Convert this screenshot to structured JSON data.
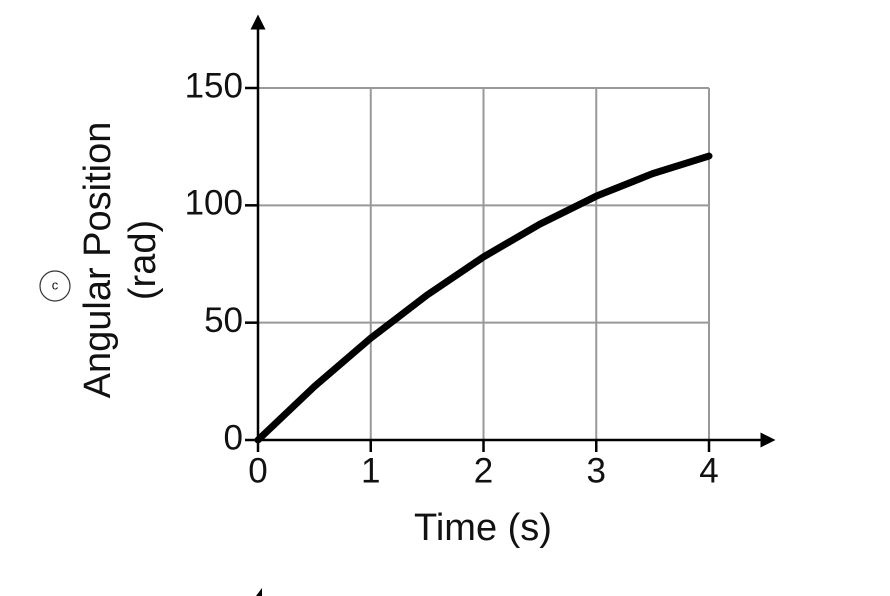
{
  "chart_data": {
    "type": "line",
    "panel_label": "c",
    "xlabel": "Time (s)",
    "ylabel": [
      "Angular Position",
      "(rad)"
    ],
    "x": [
      0,
      0.5,
      1,
      1.5,
      2,
      2.5,
      3,
      3.5,
      4
    ],
    "series": [
      {
        "name": "Angular Position",
        "color": "#000000",
        "values": [
          0,
          22.8,
          43.4,
          61.8,
          78,
          92.0,
          103.9,
          113.5,
          121
        ]
      }
    ],
    "xlim": [
      0,
      4
    ],
    "ylim": [
      0,
      150
    ],
    "xticks": [
      0,
      1,
      2,
      3,
      4
    ],
    "yticks": [
      0,
      50,
      100,
      150
    ],
    "grid": true
  }
}
